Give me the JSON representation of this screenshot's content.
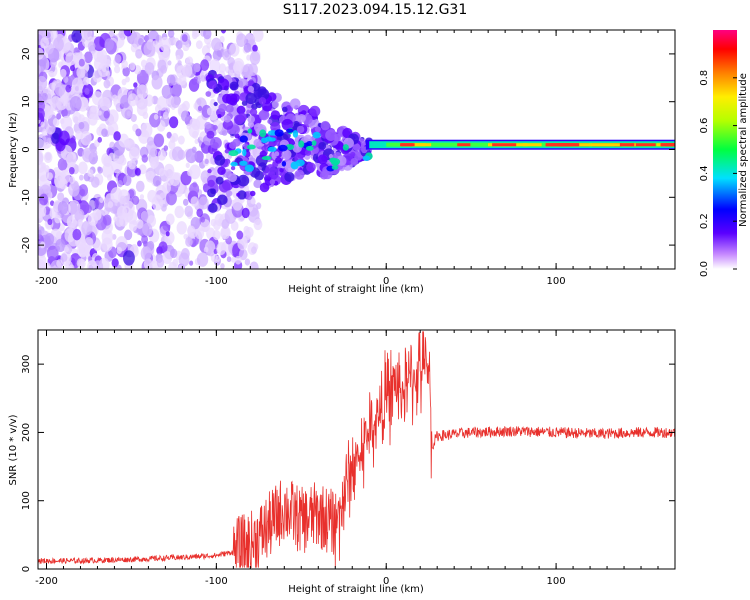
{
  "title": "S117.2023.094.15.12.G31",
  "chart_data": [
    {
      "type": "heatmap",
      "xlabel": "Height of straight line (km)",
      "ylabel": "Frequency (Hz)",
      "xlim": [
        -205,
        170
      ],
      "ylim": [
        -25,
        25
      ],
      "xticks": [
        "-200",
        "-100",
        "0",
        "100"
      ],
      "yticks": [
        "-20",
        "-10",
        "0",
        "10",
        "20"
      ],
      "colorbar": {
        "label": "Normalized spectral amplitude",
        "range": [
          0.0,
          1.0
        ],
        "ticks": [
          "0.0",
          "0.2",
          "0.4",
          "0.6",
          "0.8"
        ]
      },
      "features": {
        "scatter_noise_x_range": [
          -205,
          -90
        ],
        "convergence_x_range": [
          -100,
          -10
        ],
        "stable_band_x_range": [
          -10,
          170
        ],
        "stable_band_frequency": 1
      }
    },
    {
      "type": "line",
      "xlabel": "Height of straight line (km)",
      "ylabel": "SNR (10 * v/v)",
      "xlim": [
        -205,
        170
      ],
      "ylim": [
        0,
        350
      ],
      "xticks": [
        "-200",
        "-100",
        "0",
        "100"
      ],
      "yticks": [
        "0",
        "100",
        "200",
        "300"
      ],
      "color": "#e8302c",
      "series": [
        {
          "x": [
            -205,
            -180,
            -150,
            -120,
            -100,
            -90,
            -80,
            -70,
            -60,
            -50,
            -40,
            -30,
            -20,
            -15,
            -10,
            -5,
            0,
            5,
            10,
            15,
            20,
            25,
            27,
            30,
            50,
            75,
            100,
            125,
            150,
            170
          ],
          "y": [
            12,
            12,
            14,
            17,
            20,
            25,
            35,
            60,
            90,
            70,
            80,
            65,
            150,
            170,
            200,
            220,
            250,
            270,
            260,
            280,
            290,
            300,
            180,
            195,
            200,
            202,
            200,
            198,
            200,
            200
          ]
        }
      ]
    }
  ]
}
